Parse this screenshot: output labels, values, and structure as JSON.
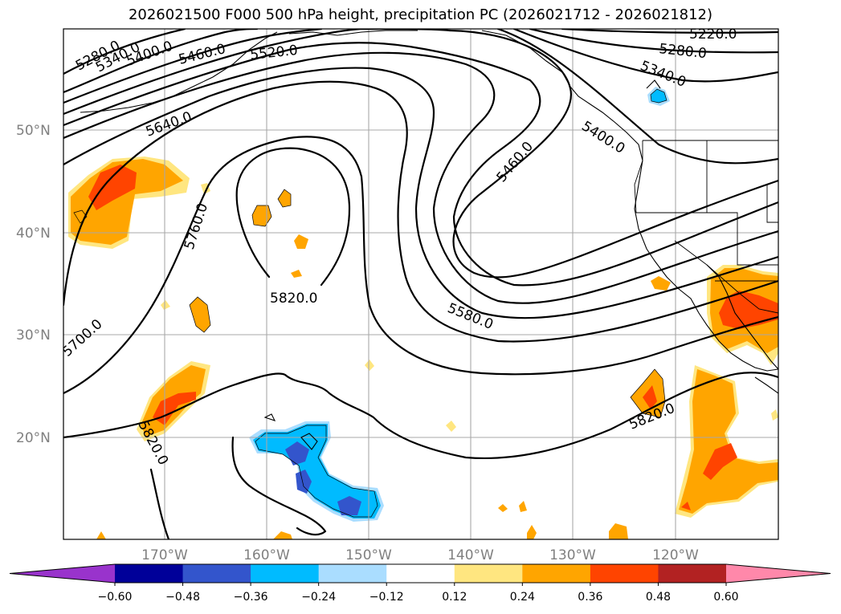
{
  "title": "2026021500 F000 500 hPa height, precipitation PC (2026021712 - 2026021812)",
  "map": {
    "lat_labels": [
      "50°N",
      "40°N",
      "30°N",
      "20°N"
    ],
    "lon_labels": [
      "170°W",
      "160°W",
      "150°W",
      "140°W",
      "130°W",
      "120°W"
    ],
    "contour_labels": [
      {
        "text": "5280.0",
        "id": "5280-west"
      },
      {
        "text": "5340.0",
        "id": "5340-west"
      },
      {
        "text": "5400.0",
        "id": "5400-west"
      },
      {
        "text": "5460.0",
        "id": "5460-west"
      },
      {
        "text": "5520.0",
        "id": "5520"
      },
      {
        "text": "5640.0",
        "id": "5640"
      },
      {
        "text": "5760.0",
        "id": "5760"
      },
      {
        "text": "5820.0",
        "id": "5820-high"
      },
      {
        "text": "5700.0",
        "id": "5700"
      },
      {
        "text": "5820.0",
        "id": "5820-southwest"
      },
      {
        "text": "5580.0",
        "id": "5580"
      },
      {
        "text": "5460.0",
        "id": "5460-trough"
      },
      {
        "text": "5400.0",
        "id": "5400-east"
      },
      {
        "text": "5340.0",
        "id": "5340-east"
      },
      {
        "text": "5280.0",
        "id": "5280-east"
      },
      {
        "text": "5220.0",
        "id": "5220"
      },
      {
        "text": "5820.0",
        "id": "5820-east"
      }
    ]
  },
  "colorbar": {
    "colors": [
      "#9933cc",
      "#000099",
      "#3355cc",
      "#00bbff",
      "#aaddff",
      "#ffffff",
      "#ffe680",
      "#ffa500",
      "#ff4400",
      "#b22222",
      "#ff88aa"
    ],
    "tick_labels": [
      "−0.60",
      "−0.48",
      "−0.36",
      "−0.24",
      "−0.12",
      "0.12",
      "0.24",
      "0.36",
      "0.48",
      "0.60"
    ]
  }
}
